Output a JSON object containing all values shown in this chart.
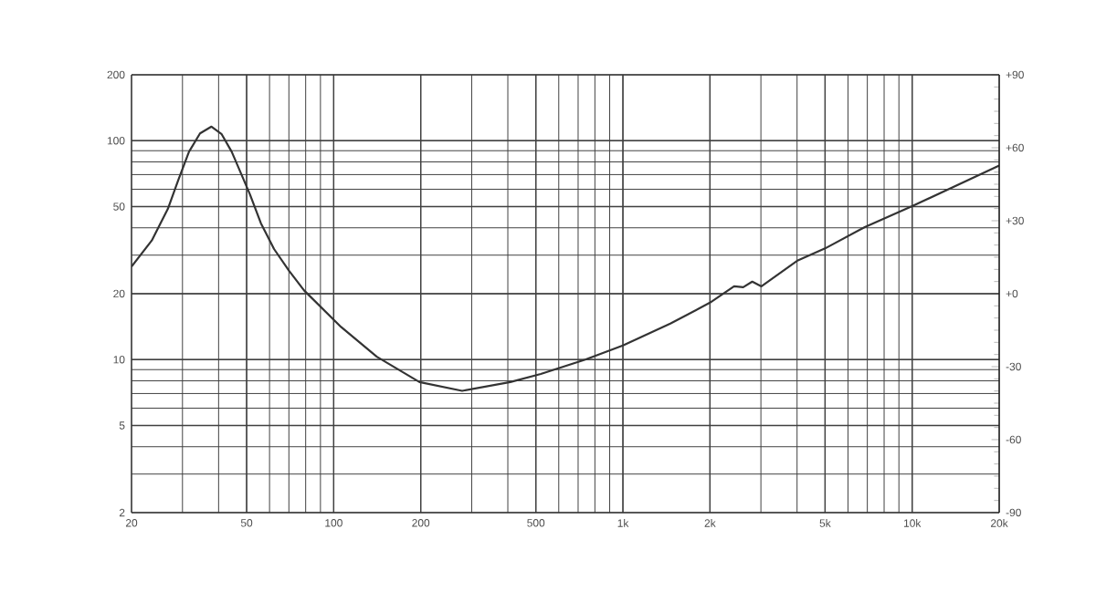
{
  "chart_data": {
    "type": "line",
    "x": [
      20,
      23.5,
      26.7,
      29,
      31.6,
      34.5,
      37.8,
      41,
      44.4,
      51.3,
      56,
      62.2,
      70,
      79,
      106,
      141,
      198,
      278,
      408,
      520,
      741,
      1000,
      1459,
      2000,
      2423,
      2606,
      2800,
      3013,
      4027,
      5000,
      6859,
      10000,
      20000
    ],
    "series": [
      {
        "color": "#333333",
        "values": [
          26.6,
          35,
          48.8,
          66,
          89,
          108,
          116,
          107,
          89,
          57,
          42,
          32,
          25.5,
          20.7,
          14.1,
          10.3,
          7.9,
          7.2,
          7.9,
          8.6,
          10.0,
          11.6,
          14.6,
          18.2,
          21.6,
          21.4,
          22.7,
          21.6,
          28.4,
          32.2,
          40.3,
          50.2,
          77
        ]
      }
    ],
    "log": "xy",
    "xlim": [
      20,
      20000
    ],
    "xticks": [
      20,
      50,
      100,
      200,
      500,
      {
        "value": 1000,
        "label": "1k"
      },
      {
        "value": 2000,
        "label": "2k"
      },
      {
        "value": 5000,
        "label": "5k"
      },
      {
        "value": 10000,
        "label": "10k"
      },
      {
        "value": 20000,
        "label": "20k"
      }
    ],
    "ylim": [
      2,
      200
    ],
    "yticks": [
      2,
      5,
      10,
      20,
      50,
      100,
      200
    ],
    "y2lim": [
      -90,
      90
    ],
    "y2ticks": [
      {
        "value": -90,
        "label": "-90"
      },
      {
        "value": -60,
        "label": "-60"
      },
      {
        "value": -30,
        "label": "-30"
      },
      {
        "value": 0,
        "label": "+0"
      },
      {
        "value": 30,
        "label": "+30"
      },
      {
        "value": 60,
        "label": "+60"
      },
      {
        "value": 90,
        "label": "+90"
      }
    ],
    "grid": true,
    "line_style": "solid",
    "marker": "none"
  }
}
